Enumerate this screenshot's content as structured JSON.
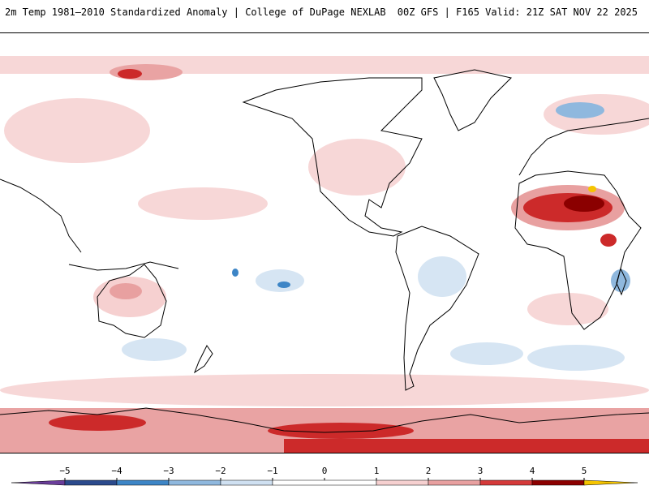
{
  "header": {
    "title": "2m Temp 1981–2010 Standardized Anomaly | College of DuPage NEXLAB",
    "run_info": "00Z GFS | F165 Valid: 21Z SAT NOV 22 2025"
  },
  "legend": {
    "ticks": [
      {
        "label": "−5",
        "value": -5
      },
      {
        "label": "−4",
        "value": -4
      },
      {
        "label": "−3",
        "value": -3
      },
      {
        "label": "−2",
        "value": -2
      },
      {
        "label": "−1",
        "value": -1
      },
      {
        "label": "0",
        "value": 0
      },
      {
        "label": "1",
        "value": 1
      },
      {
        "label": "2",
        "value": 2
      },
      {
        "label": "3",
        "value": 3
      },
      {
        "label": "4",
        "value": 4
      },
      {
        "label": "5",
        "value": 5
      }
    ],
    "bins": [
      {
        "from": -6,
        "to": -5,
        "color": "#6a3d9a"
      },
      {
        "from": -5,
        "to": -4,
        "color": "#2b4a8c"
      },
      {
        "from": -4,
        "to": -3,
        "color": "#3d85c6"
      },
      {
        "from": -3,
        "to": -2,
        "color": "#8fb8de"
      },
      {
        "from": -2,
        "to": -1,
        "color": "#cfe0f1"
      },
      {
        "from": -1,
        "to": 1,
        "color": "#ffffff"
      },
      {
        "from": 1,
        "to": 2,
        "color": "#f6d0d0"
      },
      {
        "from": 2,
        "to": 3,
        "color": "#e8a0a0"
      },
      {
        "from": 3,
        "to": 4,
        "color": "#d43a3a"
      },
      {
        "from": 4,
        "to": 5,
        "color": "#8b0000"
      },
      {
        "from": 5,
        "to": 6,
        "color": "#f5c400"
      }
    ]
  },
  "colors": {
    "coast": "#000000",
    "border": "#000000",
    "warm_light": "#f7d7d7",
    "warm_mid": "#e9a3a3",
    "warm_strong": "#cc2a2a",
    "warm_extreme": "#8b0000",
    "cold_light": "#d6e5f3",
    "cold_mid": "#8fb8de",
    "cold_strong": "#3d85c6",
    "peak": "#f5c400"
  }
}
